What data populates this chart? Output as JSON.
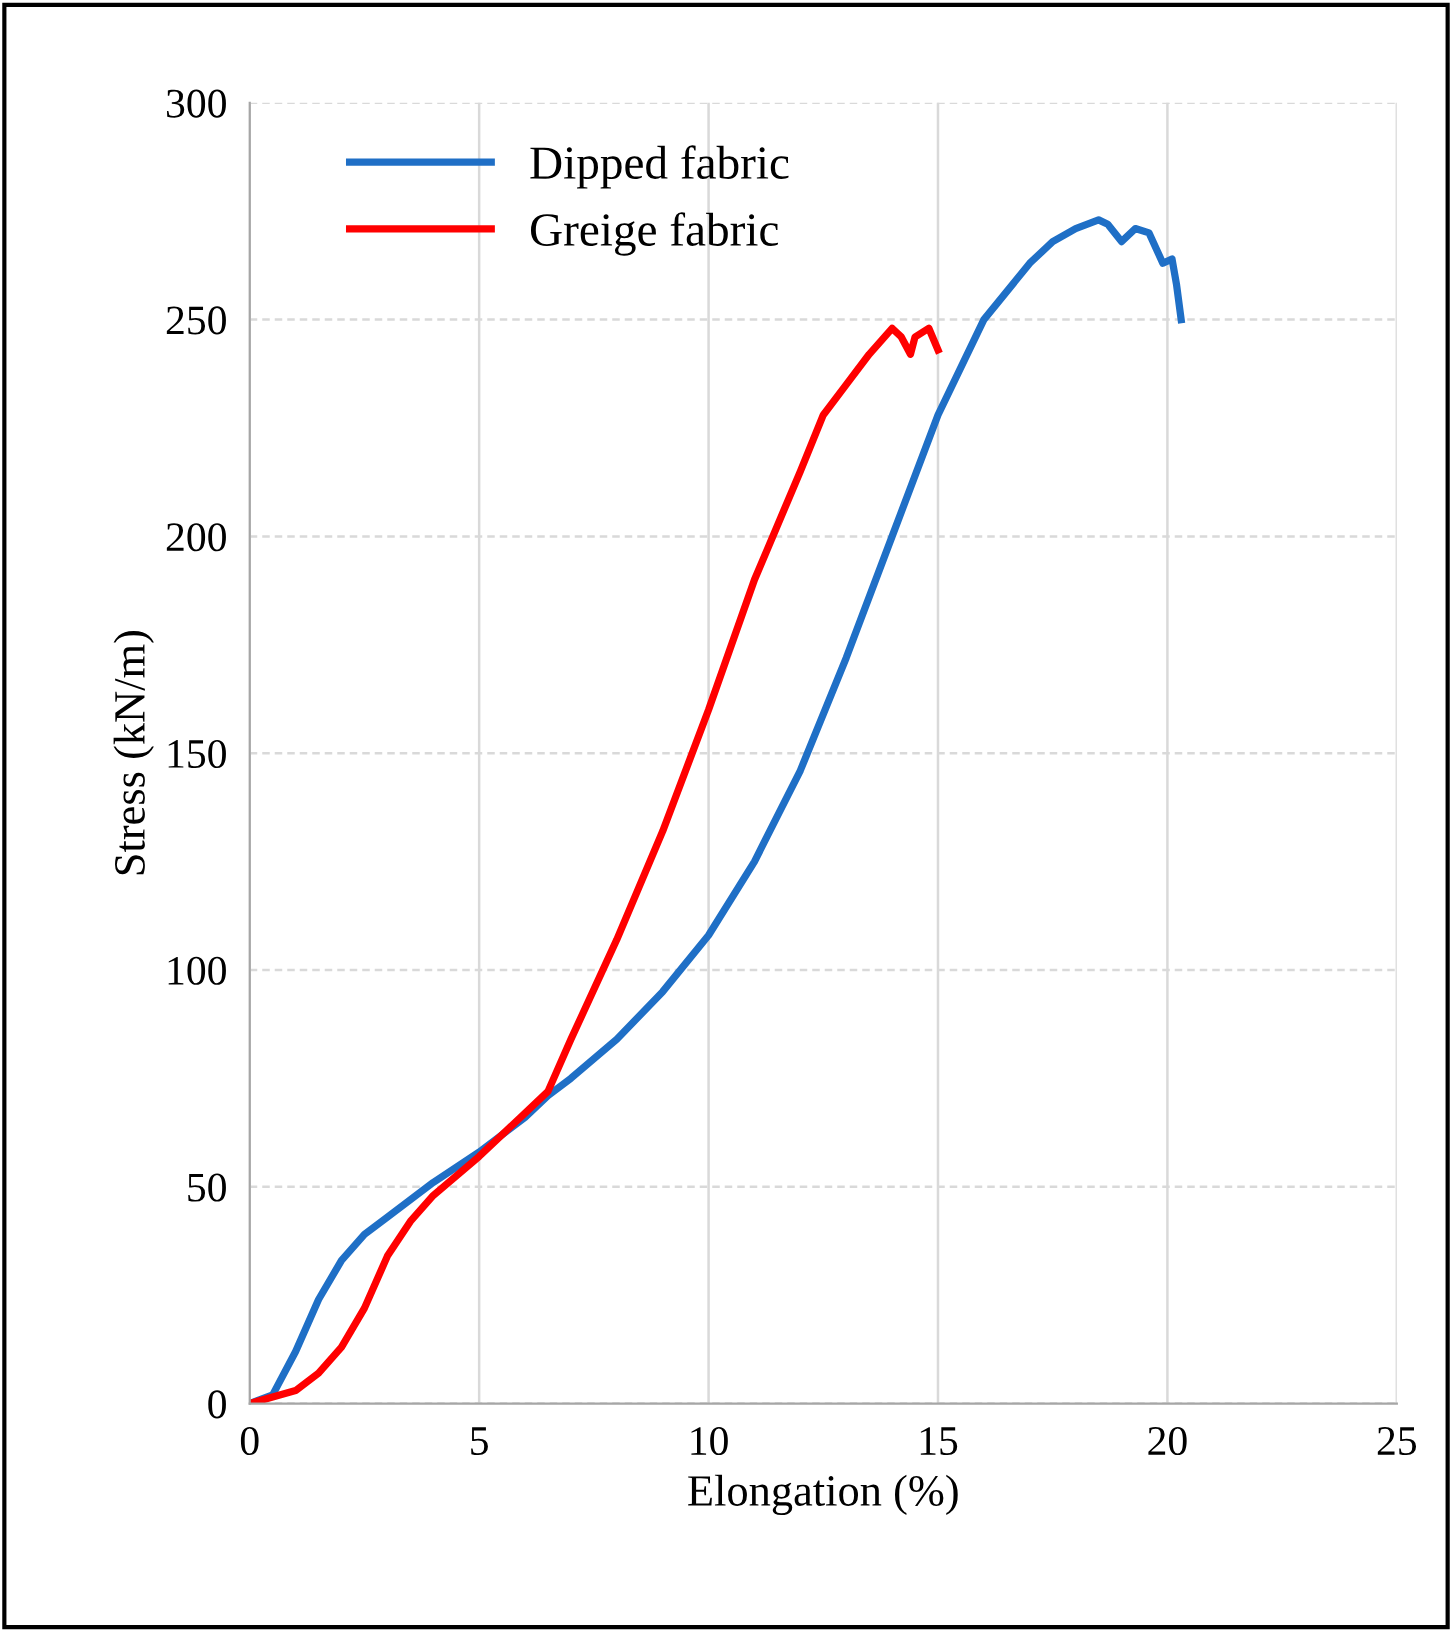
{
  "chart_data": {
    "type": "line",
    "xlabel": "Elongation (%)",
    "ylabel": "Stress (kN/m)",
    "xlim": [
      0,
      25
    ],
    "xticks": [
      0,
      5,
      10,
      15,
      20,
      25
    ],
    "ylim": [
      0,
      300
    ],
    "yticks": [
      0,
      50,
      100,
      150,
      200,
      250,
      300
    ],
    "grid": true,
    "legend": "top left",
    "marker": "none",
    "line_style": "solid",
    "series": [
      {
        "name": "Dipped fabric",
        "color": "#1f6fc6",
        "x": [
          0,
          0.5,
          1,
          1.5,
          2,
          2.5,
          3,
          4,
          5,
          6,
          6.5,
          7,
          8,
          9,
          10,
          11,
          12,
          13,
          14,
          15,
          16,
          17,
          17.5,
          18,
          18.5,
          18.7,
          19,
          19.3,
          19.6,
          19.9,
          20.1,
          20.2,
          20.3
        ],
        "values": [
          0,
          2,
          12,
          24,
          33,
          39,
          43,
          51,
          58,
          66,
          71,
          75,
          84,
          95,
          108,
          125,
          146,
          172,
          200,
          228,
          250,
          263,
          268,
          271,
          273,
          272,
          268,
          271,
          270,
          263,
          264,
          258,
          250
        ]
      },
      {
        "name": "Greige fabric",
        "color": "#ff0000",
        "x": [
          0,
          1,
          1.5,
          2,
          2.5,
          3,
          3.5,
          4,
          5,
          6,
          6.5,
          7,
          8,
          9,
          10,
          11,
          12,
          12.5,
          13,
          13.5,
          14,
          14.2,
          14.4,
          14.5,
          14.8,
          15
        ],
        "values": [
          0,
          3,
          7,
          13,
          22,
          34,
          42,
          48,
          57,
          67,
          72,
          84,
          107,
          132,
          160,
          190,
          215,
          228,
          235,
          242,
          248,
          246,
          242,
          246,
          248,
          243
        ]
      }
    ]
  }
}
